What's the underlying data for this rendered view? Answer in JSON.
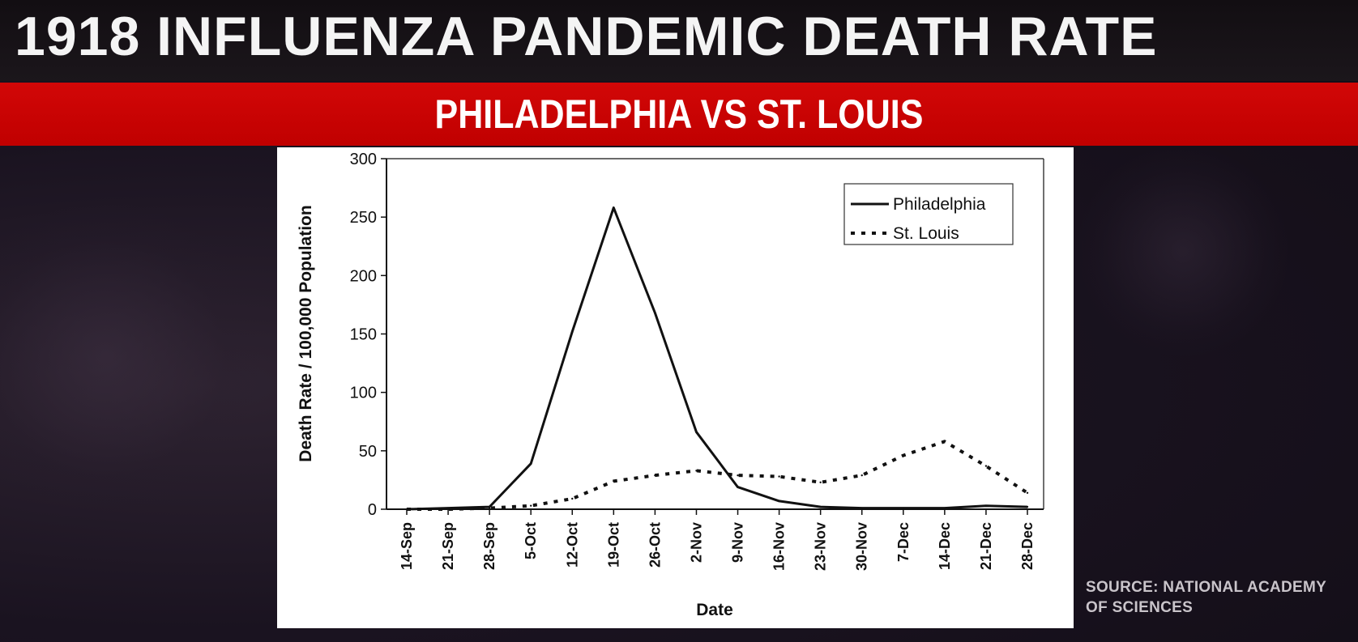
{
  "header": {
    "title": "1918 INFLUENZA PANDEMIC DEATH RATE",
    "subtitle": "PHILADELPHIA VS ST. LOUIS"
  },
  "source": {
    "line1": "SOURCE: NATIONAL ACADEMY",
    "line2": "OF SCIENCES"
  },
  "colors": {
    "title_bar": "#1b161b",
    "subtitle_bar": "#c80404",
    "line": "#111111"
  },
  "chart_data": {
    "type": "line",
    "xlabel": "Date",
    "ylabel": "Death Rate / 100,000 Population",
    "ylim": [
      0,
      300
    ],
    "yticks": [
      0,
      50,
      100,
      150,
      200,
      250,
      300
    ],
    "categories": [
      "14-Sep",
      "21-Sep",
      "28-Sep",
      "5-Oct",
      "12-Oct",
      "19-Oct",
      "26-Oct",
      "2-Nov",
      "9-Nov",
      "16-Nov",
      "23-Nov",
      "30-Nov",
      "7-Dec",
      "14-Dec",
      "21-Dec",
      "28-Dec"
    ],
    "series": [
      {
        "name": "Philadelphia",
        "style": "solid",
        "values": [
          0,
          1,
          2,
          39,
          152,
          258,
          168,
          66,
          19,
          7,
          2,
          1,
          1,
          1,
          3,
          2
        ]
      },
      {
        "name": "St. Louis",
        "style": "dotted",
        "values": [
          0,
          0,
          1,
          3,
          9,
          24,
          29,
          33,
          29,
          28,
          23,
          29,
          46,
          58,
          37,
          14
        ]
      }
    ],
    "legend_position": "top-right",
    "grid": false
  }
}
